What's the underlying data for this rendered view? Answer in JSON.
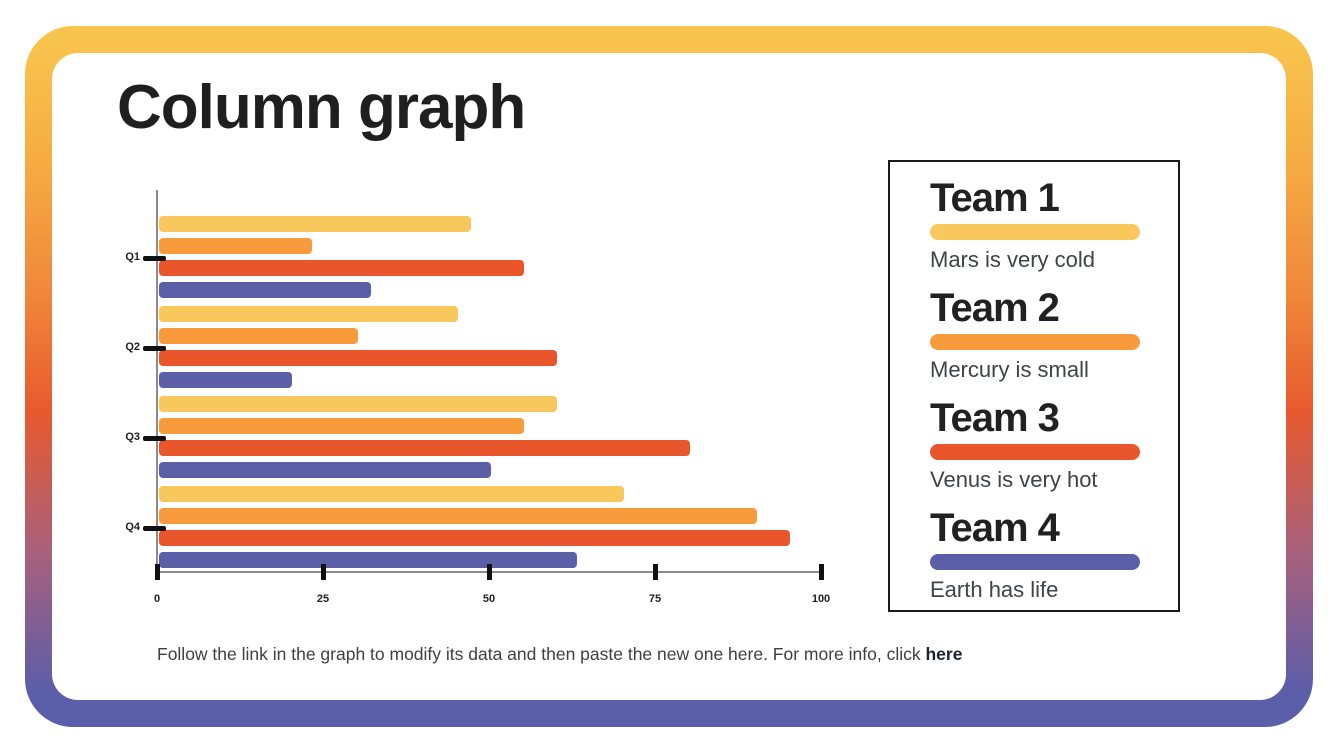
{
  "slide": {
    "title": "Column graph",
    "footer": {
      "text": "Follow the link in the graph to modify its data and then paste the new one here. For more info, click ",
      "link_label": "here"
    }
  },
  "chart_data": {
    "type": "bar",
    "orientation": "horizontal",
    "title": "Column graph",
    "categories": [
      "Q1",
      "Q2",
      "Q3",
      "Q4"
    ],
    "series": [
      {
        "name": "Team 1",
        "color": "#F9C85C",
        "values": [
          47,
          45,
          60,
          70
        ]
      },
      {
        "name": "Team 2",
        "color": "#F79B3C",
        "values": [
          23,
          30,
          55,
          90
        ]
      },
      {
        "name": "Team 3",
        "color": "#E9562B",
        "values": [
          55,
          60,
          80,
          95
        ]
      },
      {
        "name": "Team 4",
        "color": "#5B5FA7",
        "values": [
          32,
          20,
          50,
          63
        ]
      }
    ],
    "xlim": [
      0,
      100
    ],
    "x_ticks": [
      0,
      25,
      50,
      75,
      100
    ],
    "grid": false,
    "legend_position": "right-box"
  },
  "legend": {
    "items": [
      {
        "name": "Team 1",
        "color": "#F9C85C",
        "description": "Mars is very cold"
      },
      {
        "name": "Team 2",
        "color": "#F79B3C",
        "description": "Mercury is small"
      },
      {
        "name": "Team 3",
        "color": "#E9562B",
        "description": "Venus is very hot"
      },
      {
        "name": "Team 4",
        "color": "#5B5FA7",
        "description": "Earth has life"
      }
    ]
  },
  "frame": {
    "gradient_top": "#F9C64F",
    "gradient_middle": "#E85A2E",
    "gradient_bottom": "#5B5EA9"
  }
}
